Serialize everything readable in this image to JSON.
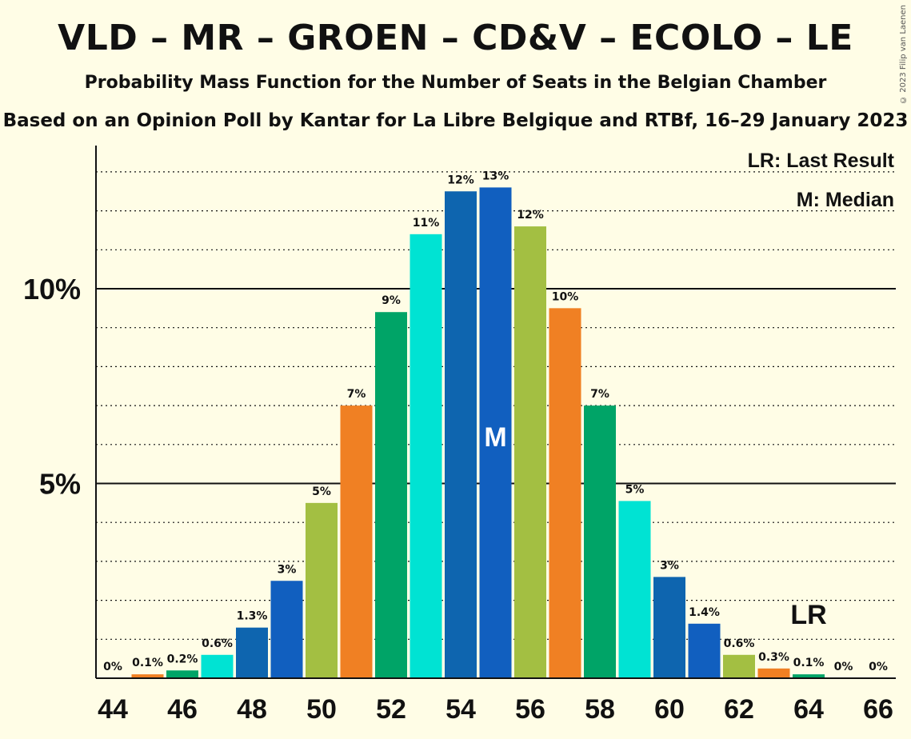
{
  "title": "VLD – MR – GROEN – CD&V – ECOLO – LE",
  "subtitle": "Probability Mass Function for the Number of Seats in the Belgian Chamber",
  "subtitle2": "Based on an Opinion Poll by Kantar for La Libre Belgique and RTBf, 16–29 January 2023",
  "copyright": "© 2023 Filip van Laenen",
  "legend": {
    "last_result": "LR: Last Result",
    "median": "M: Median"
  },
  "markers": {
    "median_label": "M",
    "median_seat": 55,
    "last_result_label": "LR",
    "last_result_seat": 64
  },
  "chart_data": {
    "type": "bar",
    "x": [
      44,
      45,
      46,
      47,
      48,
      49,
      50,
      51,
      52,
      53,
      54,
      55,
      56,
      57,
      58,
      59,
      60,
      61,
      62,
      63,
      64,
      65,
      66
    ],
    "values": [
      0,
      0.1,
      0.2,
      0.6,
      1.3,
      2.5,
      4.5,
      7.0,
      9.4,
      11.4,
      12.5,
      12.6,
      11.6,
      9.5,
      7.0,
      4.55,
      2.6,
      1.4,
      0.6,
      0.25,
      0.1,
      0,
      0
    ],
    "data_labels": [
      "0%",
      "0.1%",
      "0.2%",
      "0.6%",
      "1.3%",
      "3%",
      "5%",
      "7%",
      "9%",
      "11%",
      "12%",
      "13%",
      "12%",
      "10%",
      "7%",
      "5%",
      "3%",
      "1.4%",
      "0.6%",
      "0.3%",
      "0.1%",
      "0%",
      "0%"
    ],
    "colors": [
      "#00A467",
      "#F08023",
      "#00A467",
      "#00E3D3",
      "#0E65AF",
      "#115FBF",
      "#A3BF42",
      "#F08023",
      "#00A467",
      "#00E3D3",
      "#0E65AF",
      "#115FBF",
      "#A3BF42",
      "#F08023",
      "#00A467",
      "#00E3D3",
      "#0E65AF",
      "#115FBF",
      "#A3BF42",
      "#F08023",
      "#00A467",
      "#00E3D3",
      "#0E65AF"
    ],
    "x_ticks": [
      44,
      46,
      48,
      50,
      52,
      54,
      56,
      58,
      60,
      62,
      64,
      66
    ],
    "y_ticks": [
      {
        "value": 5,
        "label": "5%"
      },
      {
        "value": 10,
        "label": "10%"
      }
    ],
    "ylim": [
      0,
      13.5
    ],
    "grid": "dotted every 1%, solid at 5% and 10%",
    "xlabel": "",
    "ylabel": ""
  }
}
